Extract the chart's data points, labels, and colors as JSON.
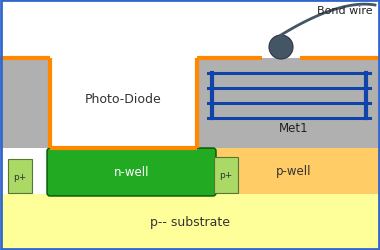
{
  "bg_color": "#ffffff",
  "border_color": "#3366cc",
  "substrate_color": "#ffff99",
  "substrate_label": "p-- substrate",
  "pwell_color": "#ffcc66",
  "pwell_label": "p-well",
  "nwell_color": "#22aa22",
  "nwell_label": "n-well",
  "pplus_color": "#aad966",
  "pplus_label": "p+",
  "photo_diode_label": "Photo-Diode",
  "gray_color": "#b0b0b0",
  "met1_label": "Met1",
  "orange_color": "#ff8800",
  "bond_wire_label": "Bond wire",
  "bond_wire_color": "#445566",
  "metal_line_color": "#1144aa",
  "white_color": "#ffffff"
}
